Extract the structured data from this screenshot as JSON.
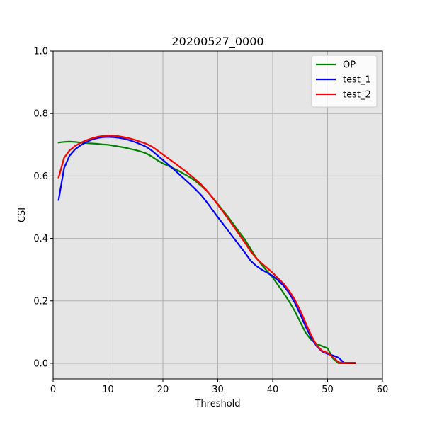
{
  "chart_data": {
    "type": "line",
    "title": "20200527_0000",
    "xlabel": "Threshold",
    "ylabel": "CSI",
    "xlim": [
      0,
      60
    ],
    "ylim": [
      -0.05,
      1.0
    ],
    "xticks": [
      0,
      10,
      20,
      30,
      40,
      50,
      60
    ],
    "yticks": [
      0.0,
      0.2,
      0.4,
      0.6,
      0.8,
      1.0
    ],
    "grid": true,
    "legend_position": "top-right",
    "series": [
      {
        "name": "OP",
        "color": "#008000",
        "x": [
          1,
          2,
          3,
          4,
          5,
          6,
          7,
          8,
          9,
          10,
          11,
          12,
          13,
          14,
          15,
          16,
          17,
          18,
          19,
          20,
          21,
          22,
          23,
          24,
          25,
          26,
          27,
          28,
          29,
          30,
          31,
          32,
          33,
          34,
          35,
          36,
          37,
          38,
          39,
          40,
          41,
          42,
          43,
          44,
          45,
          46,
          47,
          48,
          49,
          50,
          51,
          52,
          53,
          54,
          55
        ],
        "y": [
          0.707,
          0.709,
          0.71,
          0.709,
          0.707,
          0.705,
          0.704,
          0.703,
          0.701,
          0.7,
          0.697,
          0.694,
          0.691,
          0.687,
          0.683,
          0.678,
          0.672,
          0.662,
          0.65,
          0.64,
          0.632,
          0.624,
          0.615,
          0.605,
          0.595,
          0.583,
          0.568,
          0.552,
          0.532,
          0.51,
          0.488,
          0.466,
          0.442,
          0.418,
          0.395,
          0.366,
          0.338,
          0.315,
          0.295,
          0.275,
          0.25,
          0.225,
          0.198,
          0.168,
          0.133,
          0.098,
          0.075,
          0.062,
          0.055,
          0.048,
          0.015,
          0.0,
          0.0,
          0.0,
          0.0
        ]
      },
      {
        "name": "test_1",
        "color": "#0000ff",
        "x": [
          1,
          2,
          3,
          4,
          5,
          6,
          7,
          8,
          9,
          10,
          11,
          12,
          13,
          14,
          15,
          16,
          17,
          18,
          19,
          20,
          21,
          22,
          23,
          24,
          25,
          26,
          27,
          28,
          29,
          30,
          31,
          32,
          33,
          34,
          35,
          36,
          37,
          38,
          39,
          40,
          41,
          42,
          43,
          44,
          45,
          46,
          47,
          48,
          49,
          50,
          51,
          52,
          53,
          54,
          55
        ],
        "y": [
          0.523,
          0.625,
          0.665,
          0.685,
          0.698,
          0.708,
          0.716,
          0.721,
          0.724,
          0.725,
          0.724,
          0.722,
          0.719,
          0.714,
          0.708,
          0.701,
          0.693,
          0.681,
          0.666,
          0.651,
          0.636,
          0.621,
          0.605,
          0.589,
          0.573,
          0.556,
          0.538,
          0.516,
          0.492,
          0.468,
          0.445,
          0.422,
          0.399,
          0.376,
          0.353,
          0.328,
          0.312,
          0.3,
          0.29,
          0.28,
          0.265,
          0.248,
          0.225,
          0.195,
          0.158,
          0.118,
          0.082,
          0.055,
          0.038,
          0.03,
          0.025,
          0.018,
          0.002,
          0.0,
          0.0
        ]
      },
      {
        "name": "test_2",
        "color": "#ff0000",
        "x": [
          1,
          2,
          3,
          4,
          5,
          6,
          7,
          8,
          9,
          10,
          11,
          12,
          13,
          14,
          15,
          16,
          17,
          18,
          19,
          20,
          21,
          22,
          23,
          24,
          25,
          26,
          27,
          28,
          29,
          30,
          31,
          32,
          33,
          34,
          35,
          36,
          37,
          38,
          39,
          40,
          41,
          42,
          43,
          44,
          45,
          46,
          47,
          48,
          49,
          50,
          51,
          52,
          53,
          54,
          55
        ],
        "y": [
          0.595,
          0.658,
          0.682,
          0.696,
          0.706,
          0.714,
          0.72,
          0.725,
          0.728,
          0.729,
          0.729,
          0.727,
          0.724,
          0.72,
          0.715,
          0.709,
          0.703,
          0.694,
          0.682,
          0.669,
          0.656,
          0.643,
          0.63,
          0.617,
          0.603,
          0.588,
          0.572,
          0.553,
          0.531,
          0.508,
          0.484,
          0.46,
          0.435,
          0.41,
          0.385,
          0.358,
          0.337,
          0.32,
          0.305,
          0.29,
          0.272,
          0.255,
          0.232,
          0.205,
          0.17,
          0.13,
          0.09,
          0.058,
          0.04,
          0.033,
          0.02,
          0.003,
          0.002,
          0.002,
          0.002
        ]
      }
    ]
  }
}
